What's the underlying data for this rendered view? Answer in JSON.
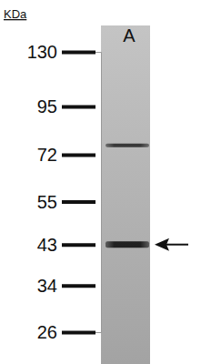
{
  "chart_data": {
    "type": "western_blot",
    "y_label": "KDa",
    "log": "y",
    "categories": [
      "A"
    ],
    "series": [
      {
        "values": [
          43
        ]
      },
      {
        "values": [
          76
        ]
      }
    ],
    "ylim": [
      26,
      130
    ],
    "yticks": [
      26,
      34,
      43,
      55,
      72,
      95,
      130
    ],
    "color": "#1a1a1a"
  }
}
